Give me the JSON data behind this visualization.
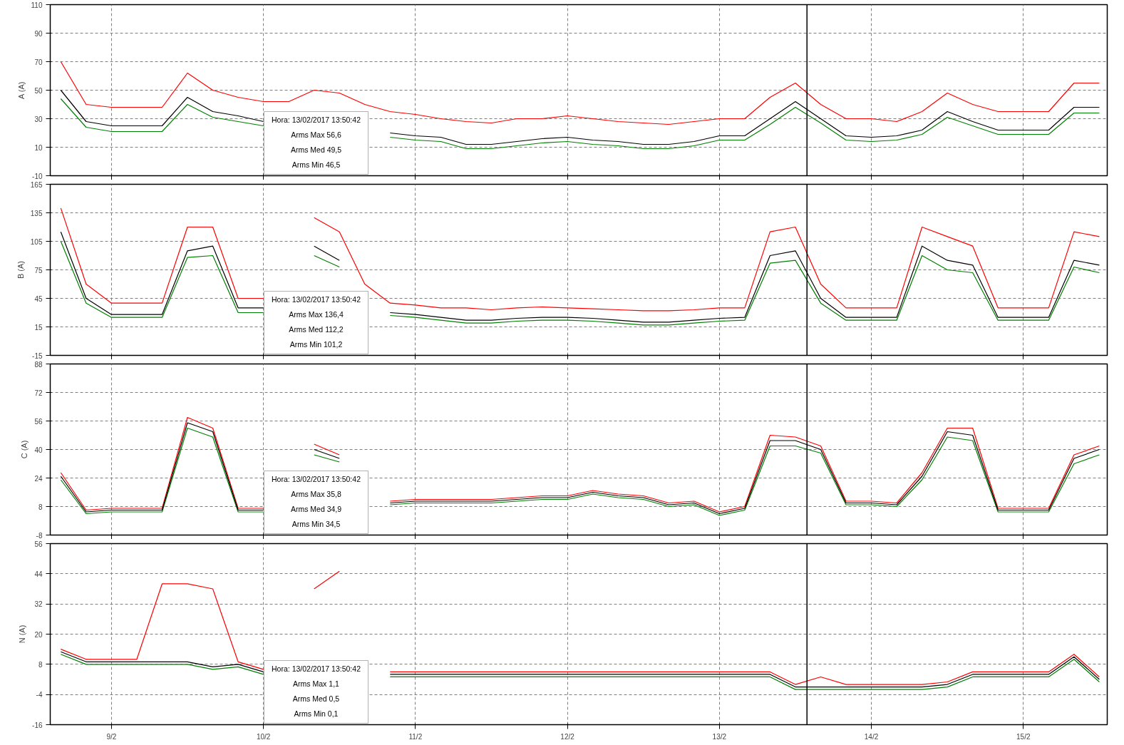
{
  "chart_data": [
    {
      "type": "line",
      "ylabel": "A (A)",
      "tick_labels": "y",
      "grid": true,
      "marker": "none",
      "line_style": "solid",
      "x": [
        "2017-02-08T16:00",
        "2017-02-08T20:00",
        "2017-02-09T00:00",
        "2017-02-09T04:00",
        "2017-02-09T08:00",
        "2017-02-09T12:00",
        "2017-02-09T16:00",
        "2017-02-09T20:00",
        "2017-02-10T00:00",
        "2017-02-10T04:00",
        "2017-02-10T08:00",
        "2017-02-10T12:00",
        "2017-02-10T16:00",
        "2017-02-10T20:00",
        "2017-02-11T00:00",
        "2017-02-11T04:00",
        "2017-02-11T08:00",
        "2017-02-11T12:00",
        "2017-02-11T16:00",
        "2017-02-11T20:00",
        "2017-02-12T00:00",
        "2017-02-12T04:00",
        "2017-02-12T08:00",
        "2017-02-12T12:00",
        "2017-02-12T16:00",
        "2017-02-12T20:00",
        "2017-02-13T00:00",
        "2017-02-13T04:00",
        "2017-02-13T08:00",
        "2017-02-13T12:00",
        "2017-02-13T16:00",
        "2017-02-13T20:00",
        "2017-02-14T00:00",
        "2017-02-14T04:00",
        "2017-02-14T08:00",
        "2017-02-14T12:00",
        "2017-02-14T16:00",
        "2017-02-14T20:00",
        "2017-02-15T00:00",
        "2017-02-15T04:00",
        "2017-02-15T08:00",
        "2017-02-15T12:00"
      ],
      "xlim": [
        "2017-02-08T14:20",
        "2017-02-15T13:15"
      ],
      "xticks": [
        {
          "value": "2017-02-09",
          "label": null
        },
        {
          "value": "2017-02-10",
          "label": null
        },
        {
          "value": "2017-02-11",
          "label": null
        },
        {
          "value": "2017-02-12",
          "label": null
        },
        {
          "value": "2017-02-13",
          "label": null
        },
        {
          "value": "2017-02-14",
          "label": null
        },
        {
          "value": "2017-02-15",
          "label": null
        }
      ],
      "ylim": [
        -10,
        110
      ],
      "yticks": [
        -10,
        10,
        30,
        50,
        70,
        90,
        110
      ],
      "ref_lines": [
        {
          "axis": "x",
          "value": "2017-02-13T13:50",
          "color": "#000000"
        }
      ],
      "annotations": [
        "Hora: 13/02/2017 13:50:42",
        "Arms Max 56,6",
        "Arms Med 49,5",
        "Arms Min 46,5"
      ],
      "series": [
        {
          "color": "#008000",
          "values": [
            44,
            24,
            21,
            21,
            21,
            40,
            31,
            28,
            25,
            null,
            null,
            null,
            null,
            17,
            15,
            14,
            9,
            9,
            11,
            13,
            14,
            12,
            11,
            9,
            9,
            11,
            15,
            15,
            26,
            38,
            27,
            15,
            14,
            15,
            19,
            31,
            25,
            19,
            19,
            19,
            34,
            34
          ]
        },
        {
          "color": "#ff0000",
          "values": [
            70,
            40,
            38,
            38,
            38,
            62,
            50,
            45,
            42,
            42,
            50,
            48,
            40,
            35,
            33,
            30,
            28,
            27,
            30,
            30,
            32,
            30,
            28,
            27,
            26,
            28,
            30,
            30,
            45,
            55,
            40,
            30,
            30,
            28,
            35,
            48,
            40,
            35,
            35,
            35,
            55,
            55
          ]
        },
        {
          "color": "#000000",
          "values": [
            50,
            28,
            25,
            25,
            25,
            45,
            35,
            32,
            28,
            null,
            null,
            null,
            null,
            20,
            18,
            17,
            12,
            12,
            14,
            16,
            17,
            15,
            14,
            12,
            12,
            14,
            18,
            18,
            30,
            42,
            30,
            18,
            17,
            18,
            22,
            35,
            28,
            22,
            22,
            22,
            38,
            38
          ]
        }
      ]
    },
    {
      "type": "line",
      "ylabel": "B (A)",
      "tick_labels": "y",
      "grid": true,
      "marker": "none",
      "line_style": "solid",
      "x": [
        "2017-02-08T16:00",
        "2017-02-08T20:00",
        "2017-02-09T00:00",
        "2017-02-09T04:00",
        "2017-02-09T08:00",
        "2017-02-09T12:00",
        "2017-02-09T16:00",
        "2017-02-09T20:00",
        "2017-02-10T00:00",
        "2017-02-10T04:00",
        "2017-02-10T08:00",
        "2017-02-10T12:00",
        "2017-02-10T16:00",
        "2017-02-10T20:00",
        "2017-02-11T00:00",
        "2017-02-11T04:00",
        "2017-02-11T08:00",
        "2017-02-11T12:00",
        "2017-02-11T16:00",
        "2017-02-11T20:00",
        "2017-02-12T00:00",
        "2017-02-12T04:00",
        "2017-02-12T08:00",
        "2017-02-12T12:00",
        "2017-02-12T16:00",
        "2017-02-12T20:00",
        "2017-02-13T00:00",
        "2017-02-13T04:00",
        "2017-02-13T08:00",
        "2017-02-13T12:00",
        "2017-02-13T16:00",
        "2017-02-13T20:00",
        "2017-02-14T00:00",
        "2017-02-14T04:00",
        "2017-02-14T08:00",
        "2017-02-14T12:00",
        "2017-02-14T16:00",
        "2017-02-14T20:00",
        "2017-02-15T00:00",
        "2017-02-15T04:00",
        "2017-02-15T08:00",
        "2017-02-15T12:00"
      ],
      "xlim": [
        "2017-02-08T14:20",
        "2017-02-15T13:15"
      ],
      "xticks": [
        {
          "value": "2017-02-09",
          "label": null
        },
        {
          "value": "2017-02-10",
          "label": null
        },
        {
          "value": "2017-02-11",
          "label": null
        },
        {
          "value": "2017-02-12",
          "label": null
        },
        {
          "value": "2017-02-13",
          "label": null
        },
        {
          "value": "2017-02-14",
          "label": null
        },
        {
          "value": "2017-02-15",
          "label": null
        }
      ],
      "ylim": [
        -15,
        165
      ],
      "yticks": [
        -15,
        15,
        45,
        75,
        105,
        135,
        165
      ],
      "ref_lines": [
        {
          "axis": "x",
          "value": "2017-02-13T13:50",
          "color": "#000000"
        }
      ],
      "annotations": [
        "Hora: 13/02/2017 13:50:42",
        "Arms Max 136,4",
        "Arms Med 112,2",
        "Arms Min 101,2"
      ],
      "series": [
        {
          "color": "#008000",
          "values": [
            105,
            40,
            25,
            25,
            25,
            88,
            90,
            30,
            30,
            null,
            90,
            78,
            null,
            27,
            25,
            22,
            19,
            19,
            21,
            22,
            22,
            21,
            19,
            17,
            17,
            19,
            21,
            22,
            82,
            85,
            40,
            22,
            22,
            22,
            90,
            75,
            72,
            22,
            22,
            22,
            78,
            72
          ]
        },
        {
          "color": "#ff0000",
          "values": [
            140,
            60,
            40,
            40,
            40,
            120,
            120,
            45,
            45,
            null,
            130,
            115,
            60,
            40,
            38,
            35,
            35,
            33,
            35,
            36,
            35,
            34,
            33,
            32,
            32,
            33,
            35,
            35,
            115,
            120,
            60,
            35,
            35,
            35,
            120,
            110,
            100,
            35,
            35,
            35,
            115,
            110
          ]
        },
        {
          "color": "#000000",
          "values": [
            115,
            45,
            28,
            28,
            28,
            95,
            100,
            35,
            35,
            null,
            100,
            85,
            null,
            30,
            28,
            25,
            22,
            22,
            24,
            25,
            25,
            24,
            22,
            20,
            20,
            22,
            24,
            25,
            90,
            95,
            45,
            25,
            25,
            25,
            100,
            85,
            80,
            25,
            25,
            25,
            85,
            80
          ]
        }
      ]
    },
    {
      "type": "line",
      "ylabel": "C (A)",
      "tick_labels": "y",
      "grid": true,
      "marker": "none",
      "line_style": "solid",
      "x": [
        "2017-02-08T16:00",
        "2017-02-08T20:00",
        "2017-02-09T00:00",
        "2017-02-09T04:00",
        "2017-02-09T08:00",
        "2017-02-09T12:00",
        "2017-02-09T16:00",
        "2017-02-09T20:00",
        "2017-02-10T00:00",
        "2017-02-10T04:00",
        "2017-02-10T08:00",
        "2017-02-10T12:00",
        "2017-02-10T16:00",
        "2017-02-10T20:00",
        "2017-02-11T00:00",
        "2017-02-11T04:00",
        "2017-02-11T08:00",
        "2017-02-11T12:00",
        "2017-02-11T16:00",
        "2017-02-11T20:00",
        "2017-02-12T00:00",
        "2017-02-12T04:00",
        "2017-02-12T08:00",
        "2017-02-12T12:00",
        "2017-02-12T16:00",
        "2017-02-12T20:00",
        "2017-02-13T00:00",
        "2017-02-13T04:00",
        "2017-02-13T08:00",
        "2017-02-13T12:00",
        "2017-02-13T16:00",
        "2017-02-13T20:00",
        "2017-02-14T00:00",
        "2017-02-14T04:00",
        "2017-02-14T08:00",
        "2017-02-14T12:00",
        "2017-02-14T16:00",
        "2017-02-14T20:00",
        "2017-02-15T00:00",
        "2017-02-15T04:00",
        "2017-02-15T08:00",
        "2017-02-15T12:00"
      ],
      "xlim": [
        "2017-02-08T14:20",
        "2017-02-15T13:15"
      ],
      "xticks": [
        {
          "value": "2017-02-09",
          "label": null
        },
        {
          "value": "2017-02-10",
          "label": null
        },
        {
          "value": "2017-02-11",
          "label": null
        },
        {
          "value": "2017-02-12",
          "label": null
        },
        {
          "value": "2017-02-13",
          "label": null
        },
        {
          "value": "2017-02-14",
          "label": null
        },
        {
          "value": "2017-02-15",
          "label": null
        }
      ],
      "ylim": [
        -8,
        88
      ],
      "yticks": [
        -8,
        8,
        24,
        40,
        56,
        72,
        88
      ],
      "ref_lines": [
        {
          "axis": "x",
          "value": "2017-02-13T13:50",
          "color": "#000000"
        }
      ],
      "annotations": [
        "Hora: 13/02/2017 13:50:42",
        "Arms Max 35,8",
        "Arms Med 34,9",
        "Arms Min 34,5"
      ],
      "series": [
        {
          "color": "#008000",
          "values": [
            23,
            4,
            5,
            5,
            5,
            52,
            47,
            5,
            5,
            null,
            37,
            33,
            null,
            9,
            10,
            10,
            10,
            10,
            11,
            12,
            12,
            15,
            13,
            12,
            8,
            9,
            3,
            6,
            42,
            42,
            38,
            9,
            9,
            8,
            23,
            47,
            45,
            5,
            5,
            5,
            32,
            37
          ]
        },
        {
          "color": "#ff0000",
          "values": [
            27,
            6,
            7,
            7,
            7,
            58,
            52,
            7,
            7,
            null,
            43,
            37,
            null,
            11,
            12,
            12,
            12,
            12,
            13,
            14,
            14,
            17,
            15,
            14,
            10,
            11,
            5,
            8,
            48,
            47,
            42,
            11,
            11,
            10,
            27,
            52,
            52,
            7,
            7,
            7,
            37,
            42
          ]
        },
        {
          "color": "#000000",
          "values": [
            25,
            5,
            6,
            6,
            6,
            55,
            50,
            6,
            6,
            null,
            40,
            35,
            null,
            10,
            11,
            11,
            11,
            11,
            12,
            13,
            13,
            16,
            14,
            13,
            9,
            10,
            4,
            7,
            45,
            45,
            40,
            10,
            10,
            9,
            25,
            50,
            48,
            6,
            6,
            6,
            35,
            40
          ]
        }
      ]
    },
    {
      "type": "line",
      "ylabel": "N (A)",
      "grid": true,
      "marker": "none",
      "line_style": "solid",
      "x": [
        "2017-02-08T16:00",
        "2017-02-08T20:00",
        "2017-02-09T00:00",
        "2017-02-09T04:00",
        "2017-02-09T08:00",
        "2017-02-09T12:00",
        "2017-02-09T16:00",
        "2017-02-09T20:00",
        "2017-02-10T00:00",
        "2017-02-10T04:00",
        "2017-02-10T08:00",
        "2017-02-10T12:00",
        "2017-02-10T16:00",
        "2017-02-10T20:00",
        "2017-02-11T00:00",
        "2017-02-11T04:00",
        "2017-02-11T08:00",
        "2017-02-11T12:00",
        "2017-02-11T16:00",
        "2017-02-11T20:00",
        "2017-02-12T00:00",
        "2017-02-12T04:00",
        "2017-02-12T08:00",
        "2017-02-12T12:00",
        "2017-02-12T16:00",
        "2017-02-12T20:00",
        "2017-02-13T00:00",
        "2017-02-13T04:00",
        "2017-02-13T08:00",
        "2017-02-13T12:00",
        "2017-02-13T16:00",
        "2017-02-13T20:00",
        "2017-02-14T00:00",
        "2017-02-14T04:00",
        "2017-02-14T08:00",
        "2017-02-14T12:00",
        "2017-02-14T16:00",
        "2017-02-14T20:00",
        "2017-02-15T00:00",
        "2017-02-15T04:00",
        "2017-02-15T08:00",
        "2017-02-15T12:00"
      ],
      "xlim": [
        "2017-02-08T14:20",
        "2017-02-15T13:15"
      ],
      "xticks": [
        {
          "value": "2017-02-09",
          "label": "9/2"
        },
        {
          "value": "2017-02-10",
          "label": "10/2"
        },
        {
          "value": "2017-02-11",
          "label": "11/2"
        },
        {
          "value": "2017-02-12",
          "label": "12/2"
        },
        {
          "value": "2017-02-13",
          "label": "13/2"
        },
        {
          "value": "2017-02-14",
          "label": "14/2"
        },
        {
          "value": "2017-02-15",
          "label": "15/2"
        }
      ],
      "ylim": [
        -16,
        56
      ],
      "yticks": [
        -16,
        -4,
        8,
        20,
        32,
        44,
        56
      ],
      "ref_lines": [
        {
          "axis": "x",
          "value": "2017-02-13T13:50",
          "color": "#000000"
        }
      ],
      "annotations": [
        "Hora: 13/02/2017 13:50:42",
        "Arms Max 1,1",
        "Arms Med 0,5",
        "Arms Min 0,1"
      ],
      "series": [
        {
          "color": "#008000",
          "values": [
            12,
            8,
            8,
            8,
            8,
            8,
            6,
            7,
            4,
            null,
            null,
            null,
            null,
            3,
            3,
            3,
            3,
            3,
            3,
            3,
            3,
            3,
            3,
            3,
            3,
            3,
            3,
            3,
            3,
            -2,
            -2,
            -2,
            -2,
            -2,
            -2,
            -1,
            3,
            3,
            3,
            3,
            10,
            1
          ]
        },
        {
          "color": "#ff0000",
          "values": [
            14,
            10,
            10,
            10,
            40,
            40,
            38,
            9,
            6,
            null,
            38,
            45,
            null,
            5,
            5,
            5,
            5,
            5,
            5,
            5,
            5,
            5,
            5,
            5,
            5,
            5,
            5,
            5,
            5,
            0,
            3,
            0,
            0,
            0,
            0,
            1,
            5,
            5,
            5,
            5,
            12,
            3
          ]
        },
        {
          "color": "#000000",
          "values": [
            13,
            9,
            9,
            9,
            9,
            9,
            7,
            8,
            5,
            null,
            null,
            null,
            null,
            4,
            4,
            4,
            4,
            4,
            4,
            4,
            4,
            4,
            4,
            4,
            4,
            4,
            4,
            4,
            4,
            -1,
            -1,
            -1,
            -1,
            -1,
            -1,
            0,
            4,
            4,
            4,
            4,
            11,
            2
          ]
        }
      ]
    }
  ]
}
